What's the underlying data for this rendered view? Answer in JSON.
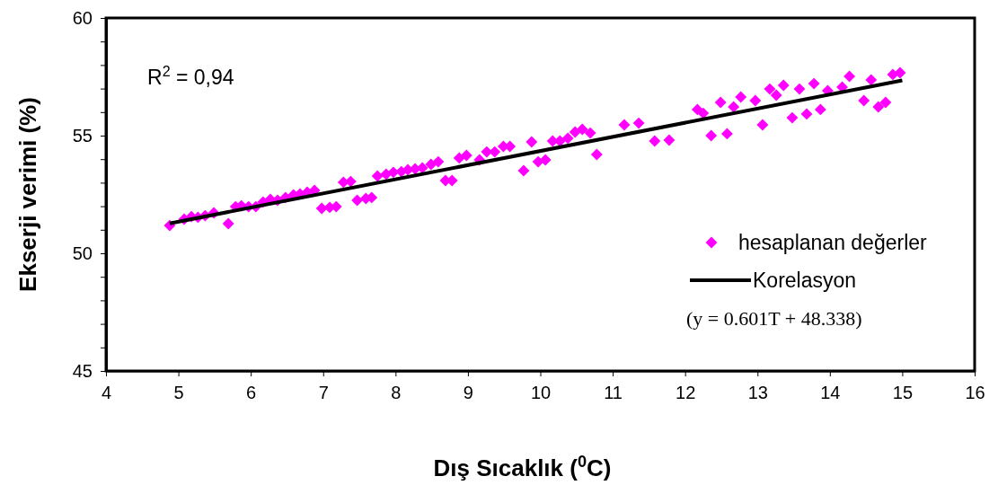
{
  "chart_data": {
    "type": "scatter",
    "xlabel": "Dış Sıcaklık ($^{0}$C)",
    "ylabel": "Ekserji verimi (%)",
    "xlim": [
      4,
      16
    ],
    "xticks": [
      4,
      5,
      6,
      7,
      8,
      9,
      10,
      11,
      12,
      13,
      14,
      15,
      16
    ],
    "ylim": [
      45,
      60
    ],
    "yticks": [
      45,
      {
        "value": 46,
        "label": null
      },
      {
        "value": 47,
        "label": null
      },
      {
        "value": 48,
        "label": null
      },
      {
        "value": 49,
        "label": null
      },
      50,
      {
        "value": 51,
        "label": null
      },
      {
        "value": 52,
        "label": null
      },
      {
        "value": 53,
        "label": null
      },
      {
        "value": 54,
        "label": null
      },
      55,
      {
        "value": 56,
        "label": null
      },
      {
        "value": 57,
        "label": null
      },
      {
        "value": 58,
        "label": null
      },
      {
        "value": 59,
        "label": null
      },
      60
    ],
    "grid": false,
    "legend": "right",
    "annotations": [
      "R$^{2}$ = 0,94",
      "(y = 0.601T + 48.338)"
    ],
    "series": [
      {
        "name": "hesaplanan değerler",
        "marker": "diamond",
        "color": "#ff00ff",
        "x": [
          4.88,
          5.08,
          5.18,
          5.27,
          5.37,
          5.49,
          5.69,
          5.79,
          5.87,
          5.97,
          6.07,
          6.17,
          6.27,
          6.37,
          6.48,
          6.59,
          6.68,
          6.78,
          6.88,
          6.98,
          7.09,
          7.18,
          7.28,
          7.38,
          7.47,
          7.59,
          7.67,
          7.75,
          7.87,
          7.97,
          8.08,
          8.17,
          8.27,
          8.37,
          8.49,
          8.59,
          8.69,
          8.78,
          8.88,
          8.98,
          9.16,
          9.26,
          9.37,
          9.49,
          9.58,
          9.77,
          9.88,
          9.97,
          10.07,
          10.17,
          10.27,
          10.38,
          10.48,
          10.58,
          10.69,
          10.78,
          11.16,
          11.36,
          11.58,
          11.78,
          12.17,
          12.25,
          12.36,
          12.49,
          12.58,
          12.67,
          12.77,
          12.97,
          13.07,
          13.17,
          13.26,
          13.36,
          13.48,
          13.58,
          13.68,
          13.78,
          13.87,
          13.97,
          14.17,
          14.27,
          14.47,
          14.57,
          14.67,
          14.77,
          14.87,
          14.97
        ],
        "values": [
          51.18,
          51.45,
          51.56,
          51.53,
          51.6,
          51.72,
          51.26,
          51.98,
          52.02,
          51.98,
          51.98,
          52.18,
          52.29,
          52.25,
          52.37,
          52.48,
          52.52,
          52.6,
          52.67,
          51.91,
          51.95,
          51.98,
          53.02,
          53.05,
          52.25,
          52.33,
          52.37,
          53.28,
          53.36,
          53.44,
          53.47,
          53.55,
          53.59,
          53.63,
          53.78,
          53.89,
          53.09,
          53.09,
          54.05,
          54.16,
          53.97,
          54.31,
          54.31,
          54.54,
          54.54,
          53.51,
          54.73,
          53.89,
          53.97,
          54.77,
          54.77,
          54.89,
          55.15,
          55.27,
          55.11,
          54.2,
          55.46,
          55.53,
          54.77,
          54.81,
          56.11,
          55.95,
          55.0,
          56.41,
          55.08,
          56.22,
          56.64,
          56.49,
          55.46,
          56.98,
          56.72,
          57.14,
          55.76,
          56.98,
          55.92,
          57.21,
          56.11,
          56.91,
          57.06,
          57.52,
          56.49,
          57.37,
          56.22,
          56.41,
          57.6,
          57.67
        ]
      },
      {
        "name": "Korelasyon",
        "type": "line",
        "marker": "none",
        "color": "#000000",
        "x": [
          4.88,
          15
        ],
        "values": [
          51.27,
          57.35
        ]
      }
    ]
  }
}
